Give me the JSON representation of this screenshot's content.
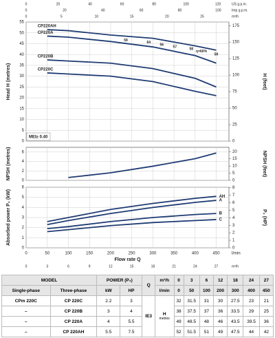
{
  "chart_data": [
    {
      "type": "line",
      "ylabel": "Head H (metres)",
      "y2label": "H (feet)",
      "xlim": [
        0,
        480
      ],
      "ylim": [
        0,
        55
      ],
      "yticks": [
        0,
        5,
        10,
        15,
        20,
        25,
        30,
        35,
        40,
        45,
        50,
        55
      ],
      "y2lim": [
        0,
        180.4
      ],
      "y2ticks": [
        0,
        25,
        50,
        75,
        100,
        125,
        150,
        175
      ],
      "x": [
        50,
        100,
        200,
        300,
        400,
        450
      ],
      "series": [
        {
          "name": "CP220AH",
          "color": "#1f3b73",
          "values": [
            51.5,
            51,
            49,
            47.5,
            44,
            42
          ]
        },
        {
          "name": "CP220A",
          "color": "#1f3b73",
          "values": [
            48.5,
            48,
            46,
            43.5,
            39.5,
            36
          ]
        },
        {
          "name": "CP220B",
          "color": "#1f3b73",
          "values": [
            37.5,
            37,
            36,
            33.5,
            29,
            25
          ]
        },
        {
          "name": "CP220C",
          "color": "#1f3b73",
          "values": [
            31.5,
            31,
            30,
            27.5,
            23,
            21
          ]
        }
      ],
      "top_axes": [
        {
          "unit": "US g.p.m.",
          "lim": [
            0,
            126.8
          ],
          "ticks": [
            0,
            20,
            40,
            60,
            80,
            100,
            120
          ]
        },
        {
          "unit": "Imp g.p.m.",
          "lim": [
            0,
            105.6
          ],
          "ticks": [
            0,
            20,
            40,
            60,
            80,
            100
          ]
        },
        {
          "unit": "m³/h",
          "lim": [
            0,
            28.8
          ],
          "ticks": [
            0,
            5,
            10,
            15,
            20,
            25
          ]
        }
      ],
      "annotations": [
        {
          "label": "59",
          "x": 236,
          "y": 46.5
        },
        {
          "label": "64",
          "x": 290,
          "y": 45.5
        },
        {
          "label": "56",
          "x": 321,
          "y": 44.5
        },
        {
          "label": "57",
          "x": 352,
          "y": 43.5
        },
        {
          "label": "58",
          "x": 391,
          "y": 42.5
        },
        {
          "label": "η=60%",
          "x": 415,
          "y": 41.5
        },
        {
          "label": "59",
          "x": 450,
          "y": 40
        }
      ],
      "note": "MEI≥ 0.40"
    },
    {
      "type": "line",
      "ylabel": "NPSH (metres)",
      "y2label": "NPSH (feet)",
      "xlim": [
        0,
        480
      ],
      "ylim": [
        0,
        7
      ],
      "yticks": [
        0,
        2,
        4,
        6
      ],
      "y2lim": [
        0,
        22.97
      ],
      "y2ticks": [
        0,
        5,
        10,
        15,
        20
      ],
      "x": [
        100,
        200,
        300,
        400,
        450
      ],
      "values": [
        0.6,
        1.6,
        3,
        4.6,
        5.8
      ],
      "color": "#1f3b73"
    },
    {
      "type": "line",
      "ylabel": "Absorbed power P₂ (kW)",
      "y2label": "P₂ (HP)",
      "xlabel": "Flow rate Q",
      "xunit": "l/min",
      "xlim": [
        0,
        480
      ],
      "xticks": [
        0,
        50,
        100,
        150,
        200,
        250,
        300,
        350,
        400,
        450
      ],
      "ylim": [
        0,
        6
      ],
      "yticks": [
        0,
        1,
        2,
        3,
        4,
        5,
        6
      ],
      "y2lim": [
        0,
        8.05
      ],
      "y2ticks": [
        0,
        1,
        2,
        3,
        4,
        5,
        6,
        7,
        8
      ],
      "x": [
        50,
        100,
        200,
        300,
        400,
        450
      ],
      "series": [
        {
          "name": "AH",
          "color": "#1f3b73",
          "values": [
            2.6,
            3,
            3.8,
            4.4,
            4.9,
            5.1
          ]
        },
        {
          "name": "A",
          "color": "#1f3b73",
          "values": [
            2.3,
            2.7,
            3.4,
            4,
            4.5,
            4.7
          ]
        },
        {
          "name": "B",
          "color": "#1f3b73",
          "values": [
            1.9,
            2.1,
            2.6,
            3,
            3.3,
            3.4
          ]
        },
        {
          "name": "C",
          "color": "#1f3b73",
          "values": [
            1.6,
            1.8,
            2.2,
            2.5,
            2.7,
            2.8
          ]
        }
      ],
      "bottom_axes": [
        {
          "unit": "m³/h",
          "lim": [
            0,
            28.8
          ],
          "ticks": [
            0,
            3,
            6,
            9,
            12,
            15,
            18,
            21,
            24,
            27
          ]
        }
      ]
    }
  ],
  "table": {
    "head1": [
      "MODEL",
      "POWER (P₂)",
      "Q",
      "m³/h",
      "0",
      "3",
      "6",
      "12",
      "18",
      "24",
      "27"
    ],
    "head2": [
      "Single-phase",
      "Three-phase",
      "kW",
      "HP",
      "l/min",
      "0",
      "50",
      "100",
      "200",
      "300",
      "400",
      "450"
    ],
    "ie": "IE3",
    "h": "H",
    "hunit": "metres",
    "rows": [
      [
        "CPm 220C",
        "CP 220C",
        "2.2",
        "3",
        "32",
        "31.5",
        "31",
        "30",
        "27.5",
        "23",
        "21"
      ],
      [
        "–",
        "CP 220B",
        "3",
        "4",
        "38",
        "37.5",
        "37",
        "36",
        "33.5",
        "29",
        "25"
      ],
      [
        "–",
        "CP 220A",
        "4",
        "5.5",
        "49",
        "48.5",
        "48",
        "46",
        "43.5",
        "39.5",
        "36"
      ],
      [
        "–",
        "CP 220AH",
        "5.5",
        "7.5",
        "52",
        "51.5",
        "51",
        "49",
        "47.5",
        "44",
        "42"
      ]
    ]
  }
}
